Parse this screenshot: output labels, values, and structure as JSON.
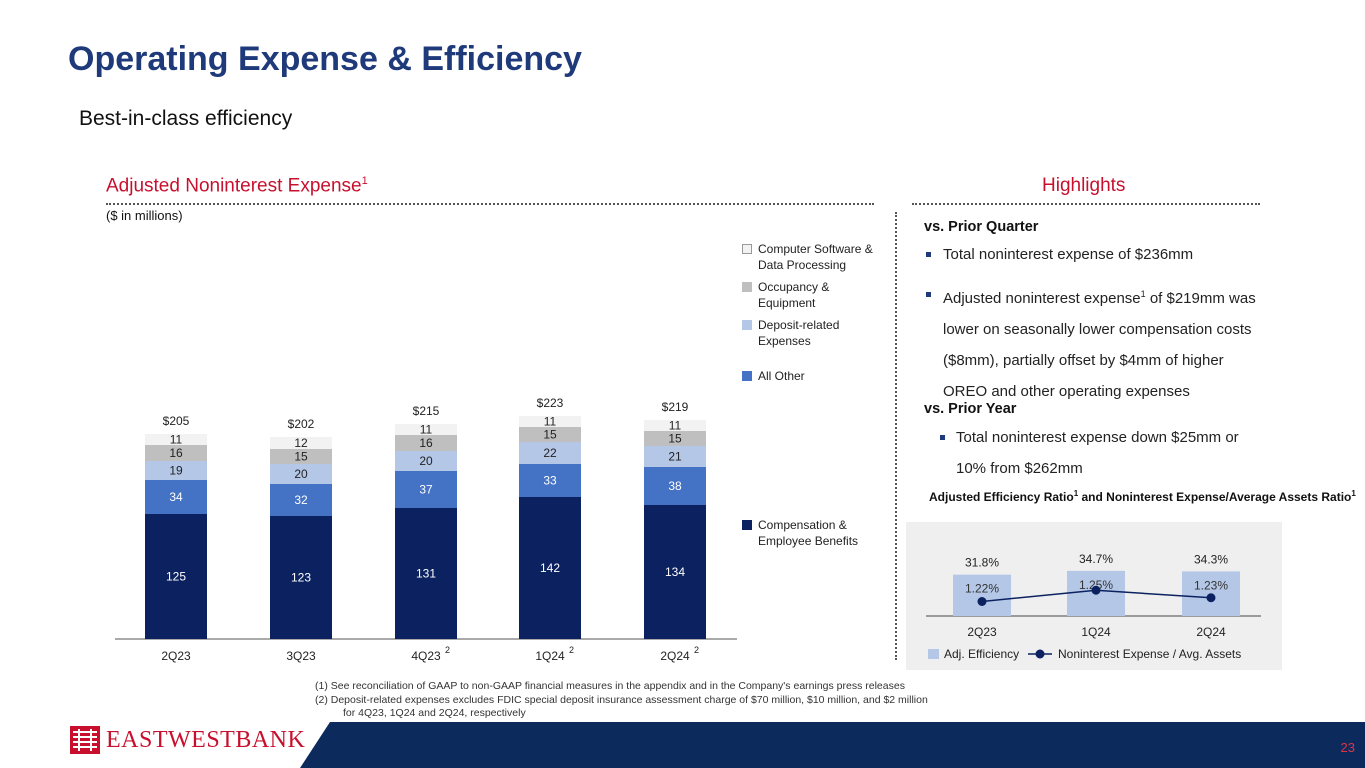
{
  "title": "Operating Expense & Efficiency",
  "subtitle": "Best-in-class efficiency",
  "left_header": {
    "text": "Adjusted Noninterest Expense",
    "sup": "1"
  },
  "right_header": "Highlights",
  "unit_label": "($ in millions)",
  "chart_data": [
    {
      "type": "bar",
      "stacked": true,
      "title": "Adjusted Noninterest Expense",
      "ylabel": "$ in millions",
      "categories": [
        "2Q23",
        "3Q23",
        "4Q23",
        "1Q24",
        "2Q24"
      ],
      "category_sups": [
        "",
        "",
        "2",
        "2",
        "2"
      ],
      "totals": [
        "$205",
        "$202",
        "$215",
        "$223",
        "$219"
      ],
      "series": [
        {
          "name": "Compensation & Employee Benefits",
          "color": "#0c2260",
          "text_color": "#ffffff",
          "values": [
            125,
            123,
            131,
            142,
            134
          ]
        },
        {
          "name": "All Other",
          "color": "#4472c4",
          "text_color": "#ffffff",
          "values": [
            34,
            32,
            37,
            33,
            38
          ]
        },
        {
          "name": "Deposit-related Expenses",
          "color": "#b4c7e7",
          "text_color": "#222222",
          "values": [
            19,
            20,
            20,
            22,
            21
          ]
        },
        {
          "name": "Occupancy & Equipment",
          "color": "#bfbfbf",
          "text_color": "#222222",
          "values": [
            16,
            15,
            16,
            15,
            15
          ]
        },
        {
          "name": "Computer Software & Data Processing",
          "color": "#f2f2f2",
          "text_color": "#222222",
          "values": [
            11,
            12,
            11,
            11,
            11
          ]
        }
      ]
    },
    {
      "type": "bar",
      "title": "Adjusted Efficiency Ratio and Noninterest Expense/Average Assets Ratio",
      "categories": [
        "2Q23",
        "1Q24",
        "2Q24"
      ],
      "series": [
        {
          "name": "Adj. Efficiency",
          "color": "#b4c7e7",
          "values": [
            31.8,
            34.7,
            34.3
          ],
          "labels": [
            "31.8%",
            "34.7%",
            "34.3%"
          ]
        },
        {
          "name": "Noninterest Expense / Avg. Assets",
          "type": "line",
          "color": "#0c2260",
          "values": [
            1.22,
            1.25,
            1.23
          ],
          "labels": [
            "1.22%",
            "1.25%",
            "1.23%"
          ]
        }
      ]
    }
  ],
  "legend": {
    "computer": "Computer Software & Data Processing",
    "occupancy": "Occupancy & Equipment",
    "deposit": "Deposit-related Expenses",
    "allother": "All Other",
    "comp": "Compensation & Employee Benefits"
  },
  "highlights": {
    "vs_prior_quarter": "vs. Prior Quarter",
    "b1": "Total noninterest expense of $236mm",
    "b2_a": "Adjusted noninterest expense",
    "b2_sup": "1",
    "b2_b": " of $219mm was lower on seasonally lower compensation costs ($8mm), partially offset by $4mm of higher OREO and other operating expenses",
    "vs_prior_year": "vs. Prior Year",
    "b3": "Total noninterest expense down $25mm or 10% from $262mm"
  },
  "efficiency": {
    "title_a": "Adjusted Efficiency Ratio",
    "title_sup": "1",
    "title_b": " and Noninterest Expense/Average Assets Ratio",
    "title_sup2": "1",
    "legend_bar": "Adj. Efficiency",
    "legend_line": "Noninterest Expense / Avg. Assets"
  },
  "footnotes": {
    "f1": "(1)   See reconciliation of GAAP to non-GAAP financial measures in the appendix and in the Company's earnings press releases",
    "f2": "(2)   Deposit-related expenses excludes FDIC special deposit insurance assessment charge of $70 million, $10 million, and $2 million",
    "f2b": "for 4Q23, 1Q24 and 2Q24, respectively"
  },
  "logo_text": "EASTWESTBANK",
  "page_number": "23"
}
